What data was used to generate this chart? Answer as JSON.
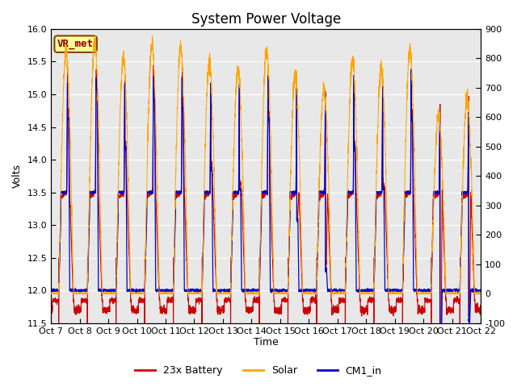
{
  "title": "System Power Voltage",
  "xlabel": "Time",
  "ylabel_left": "Volts",
  "ylabel_right": "",
  "ylim_left": [
    11.5,
    16.0
  ],
  "ylim_right": [
    -100,
    900
  ],
  "yticks_left": [
    11.5,
    12.0,
    12.5,
    13.0,
    13.5,
    14.0,
    14.5,
    15.0,
    15.5,
    16.0
  ],
  "yticks_right": [
    -100,
    0,
    100,
    200,
    300,
    400,
    500,
    600,
    700,
    800,
    900
  ],
  "xtick_labels": [
    "Oct 7",
    "Oct 8",
    "Oct 9",
    "Oct 10",
    "Oct 11",
    "Oct 12",
    "Oct 13",
    "Oct 14",
    "Oct 15",
    "Oct 16",
    "Oct 17",
    "Oct 18",
    "Oct 19",
    "Oct 20",
    "Oct 21",
    "Oct 22"
  ],
  "background_color": "#e8e8e8",
  "legend_entries": [
    "23x Battery",
    "Solar",
    "CM1_in"
  ],
  "line_colors": [
    "#cc0000",
    "#ffa500",
    "#0000cc"
  ],
  "vr_met_label": "VR_met",
  "vr_met_box_color": "#ffff99",
  "vr_met_text_color": "#8b0000",
  "title_fontsize": 12,
  "axis_fontsize": 9,
  "tick_fontsize": 8,
  "legend_fontsize": 9,
  "num_days": 15,
  "solar_day_peak": 870,
  "battery_night": 11.85,
  "battery_low": 11.7,
  "cm1_night": 12.0
}
